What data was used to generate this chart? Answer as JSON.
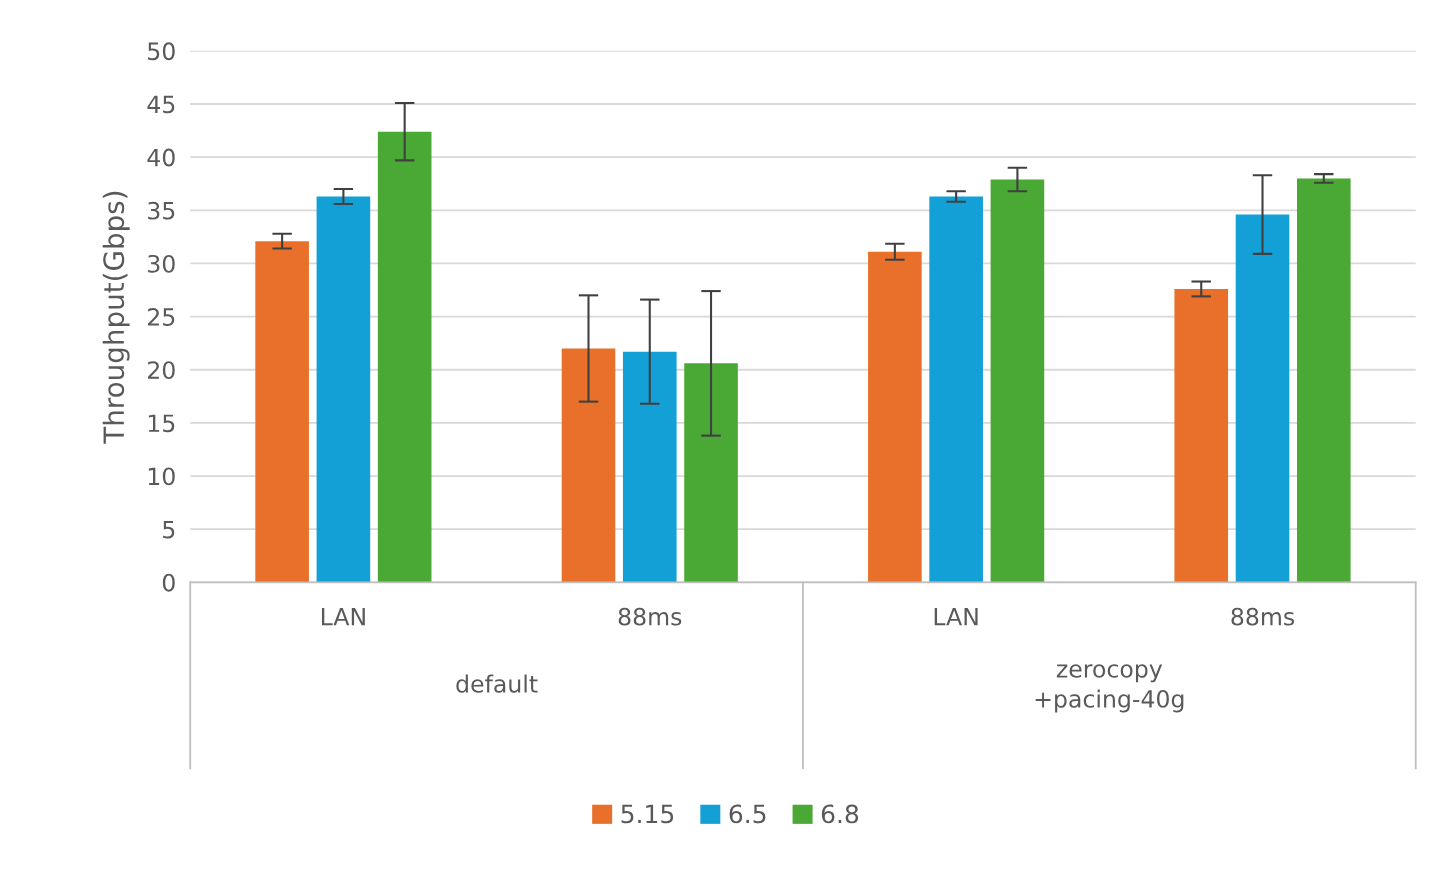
{
  "chart_data": {
    "type": "bar",
    "ylabel": "Throughput(Gbps)",
    "categories": [
      "LAN",
      "88ms",
      "LAN",
      "88ms"
    ],
    "annotations": [
      "default",
      "zerocopy\n+pacing-40g"
    ],
    "series": [
      {
        "name": "5.15",
        "color": "#e8702a",
        "values": [
          32.1,
          22.0,
          31.1,
          27.6
        ],
        "errors": [
          0.7,
          5.0,
          0.75,
          0.7
        ]
      },
      {
        "name": "6.5",
        "color": "#12a0d7",
        "values": [
          36.3,
          21.7,
          36.3,
          34.6
        ],
        "errors": [
          0.7,
          4.9,
          0.5,
          3.7
        ]
      },
      {
        "name": "6.8",
        "color": "#4aa834",
        "values": [
          42.4,
          20.6,
          37.9,
          38.0
        ],
        "errors": [
          2.7,
          6.8,
          1.1,
          0.4
        ]
      }
    ],
    "ylim": [
      0,
      50
    ],
    "yticks": [
      0,
      5,
      10,
      15,
      20,
      25,
      30,
      35,
      40,
      45,
      50
    ],
    "grid": "y",
    "legend": "bottom"
  }
}
